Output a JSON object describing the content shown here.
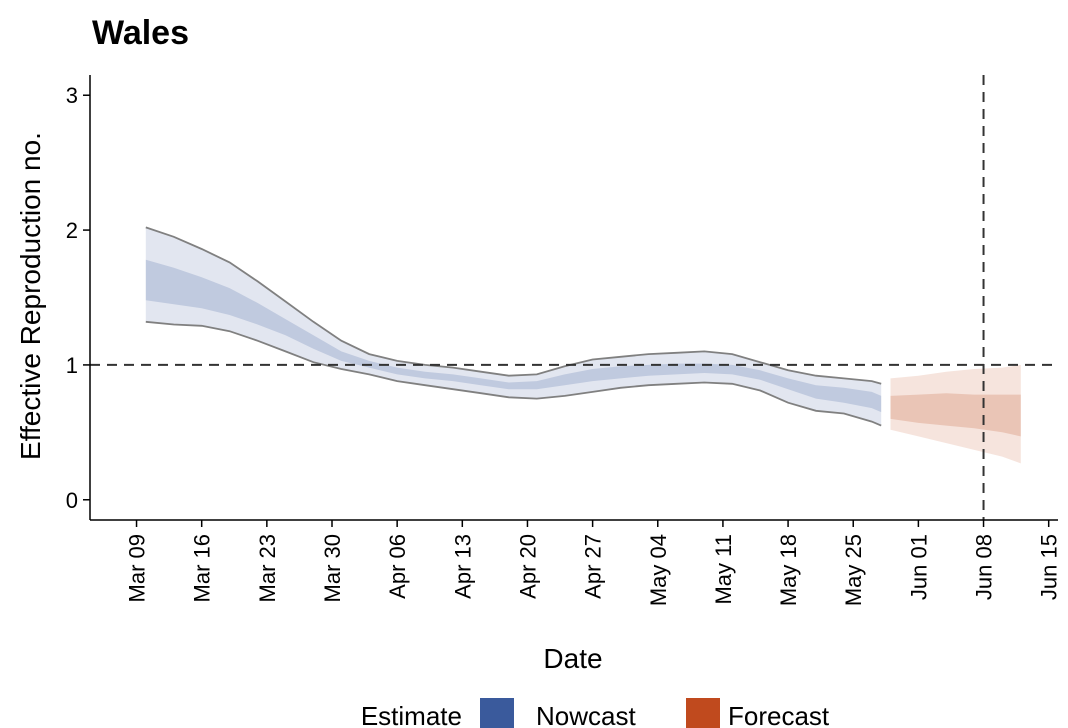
{
  "chart_data": {
    "type": "area",
    "title": "Wales",
    "xlabel": "Date",
    "ylabel": "Effective Reproduction no.",
    "xlim": [
      "2020-03-04",
      "2020-06-16"
    ],
    "ylim": [
      -0.15,
      3.15
    ],
    "yticks": [
      0,
      1,
      2,
      3
    ],
    "xticks": [
      "Mar 09",
      "Mar 16",
      "Mar 23",
      "Mar 30",
      "Apr 06",
      "Apr 13",
      "Apr 20",
      "Apr 27",
      "May 04",
      "May 11",
      "May 18",
      "May 25",
      "Jun 01",
      "Jun 08",
      "Jun 15"
    ],
    "xtick_dates": [
      "2020-03-09",
      "2020-03-16",
      "2020-03-23",
      "2020-03-30",
      "2020-04-06",
      "2020-04-13",
      "2020-04-20",
      "2020-04-27",
      "2020-05-04",
      "2020-05-11",
      "2020-05-18",
      "2020-05-25",
      "2020-06-01",
      "2020-06-08",
      "2020-06-15"
    ],
    "reference_lines": {
      "hline_y": 1,
      "vline_date": "2020-06-08"
    },
    "legend": {
      "title": "Estimate",
      "position": "bottom",
      "items": [
        {
          "label": "Nowcast",
          "color": "#3a5a9c"
        },
        {
          "label": "Forecast",
          "color": "#c04a1e"
        }
      ]
    },
    "series": [
      {
        "name": "Nowcast",
        "color": "#3a5a9c",
        "x": [
          "2020-03-10",
          "2020-03-13",
          "2020-03-16",
          "2020-03-19",
          "2020-03-22",
          "2020-03-25",
          "2020-03-28",
          "2020-03-31",
          "2020-04-03",
          "2020-04-06",
          "2020-04-09",
          "2020-04-12",
          "2020-04-15",
          "2020-04-18",
          "2020-04-21",
          "2020-04-24",
          "2020-04-27",
          "2020-04-30",
          "2020-05-03",
          "2020-05-06",
          "2020-05-09",
          "2020-05-12",
          "2020-05-15",
          "2020-05-18",
          "2020-05-21",
          "2020-05-24",
          "2020-05-27",
          "2020-05-28"
        ],
        "lower90": [
          1.32,
          1.3,
          1.29,
          1.25,
          1.18,
          1.1,
          1.02,
          0.97,
          0.93,
          0.88,
          0.85,
          0.82,
          0.79,
          0.76,
          0.75,
          0.77,
          0.8,
          0.83,
          0.85,
          0.86,
          0.87,
          0.86,
          0.81,
          0.72,
          0.66,
          0.64,
          0.58,
          0.55
        ],
        "upper90": [
          2.02,
          1.95,
          1.86,
          1.76,
          1.62,
          1.47,
          1.32,
          1.18,
          1.08,
          1.03,
          1.0,
          0.98,
          0.95,
          0.92,
          0.93,
          0.99,
          1.04,
          1.06,
          1.08,
          1.09,
          1.1,
          1.08,
          1.02,
          0.96,
          0.92,
          0.9,
          0.88,
          0.86
        ],
        "lower50": [
          1.48,
          1.45,
          1.42,
          1.37,
          1.3,
          1.22,
          1.12,
          1.03,
          0.98,
          0.93,
          0.9,
          0.88,
          0.85,
          0.82,
          0.82,
          0.85,
          0.88,
          0.9,
          0.92,
          0.93,
          0.94,
          0.93,
          0.89,
          0.82,
          0.75,
          0.72,
          0.68,
          0.65
        ],
        "upper50": [
          1.78,
          1.72,
          1.65,
          1.57,
          1.46,
          1.34,
          1.22,
          1.1,
          1.03,
          0.98,
          0.95,
          0.93,
          0.9,
          0.87,
          0.88,
          0.93,
          0.97,
          0.99,
          1.0,
          1.01,
          1.01,
          1.0,
          0.96,
          0.9,
          0.85,
          0.83,
          0.8,
          0.77
        ]
      },
      {
        "name": "Forecast",
        "color": "#c04a1e",
        "x": [
          "2020-05-29",
          "2020-06-01",
          "2020-06-04",
          "2020-06-07",
          "2020-06-10",
          "2020-06-12"
        ],
        "lower90": [
          0.52,
          0.47,
          0.42,
          0.37,
          0.32,
          0.27
        ],
        "upper90": [
          0.9,
          0.92,
          0.95,
          0.97,
          0.98,
          1.0
        ],
        "lower50": [
          0.6,
          0.57,
          0.55,
          0.53,
          0.5,
          0.47
        ],
        "upper50": [
          0.77,
          0.78,
          0.79,
          0.78,
          0.78,
          0.78
        ]
      }
    ]
  }
}
